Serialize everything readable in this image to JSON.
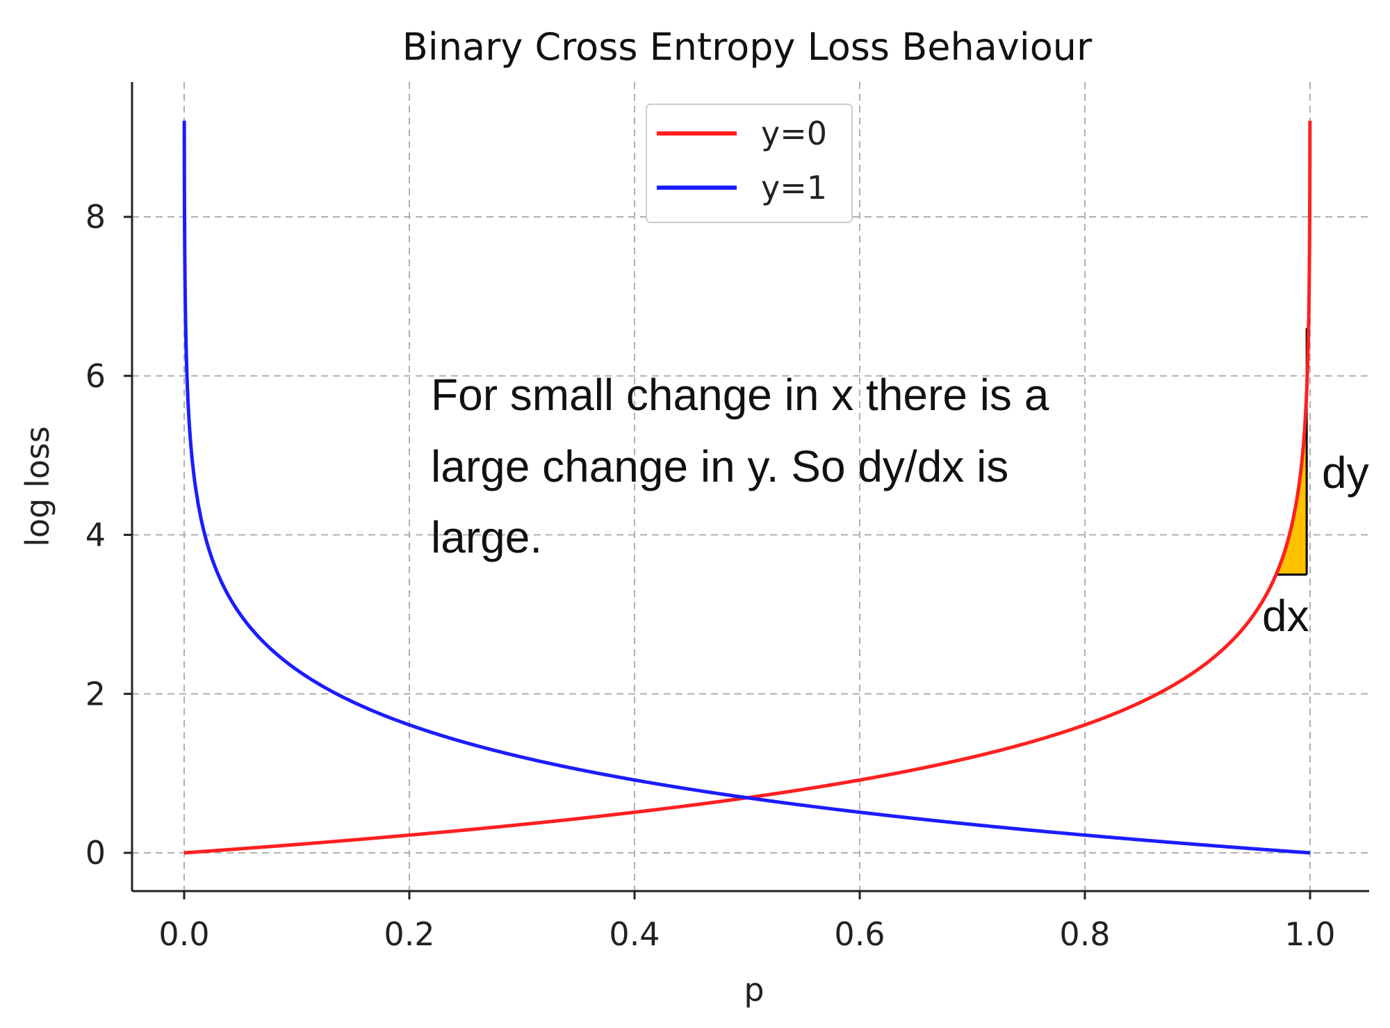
{
  "chart_data": {
    "type": "line",
    "title": "Binary Cross Entropy Loss Behaviour",
    "xlabel": "p",
    "ylabel": "log loss",
    "xlim": [
      -0.0125,
      1.0125
    ],
    "ylim": [
      -0.45,
      9.7
    ],
    "xticks": [
      "0.0",
      "0.2",
      "0.4",
      "0.6",
      "0.8",
      "1.0"
    ],
    "yticks": [
      "0",
      "2",
      "4",
      "6",
      "8"
    ],
    "grid": true,
    "legend_position": "top-center",
    "series": [
      {
        "name": "y=0",
        "color": "#ff2020",
        "formula": "-ln(1-p)",
        "p_range": [
          0.0,
          0.9999
        ],
        "y_range": [
          0.0,
          9.21
        ]
      },
      {
        "name": "y=1",
        "color": "#1c1cff",
        "formula": "-ln(p)",
        "p_range": [
          0.0001,
          1.0
        ],
        "y_range": [
          9.21,
          0.0
        ]
      }
    ],
    "annotations": {
      "text_lines": [
        "For small change in x there is a",
        "large change in y. So dy/dx is",
        "large."
      ],
      "dy_label": "dy",
      "dx_label": "dx",
      "triangle": {
        "fill": "#ffc000",
        "x_left": 0.97,
        "x_right": 0.997,
        "y_bottom": 3.5,
        "y_top": 6.6
      }
    }
  }
}
